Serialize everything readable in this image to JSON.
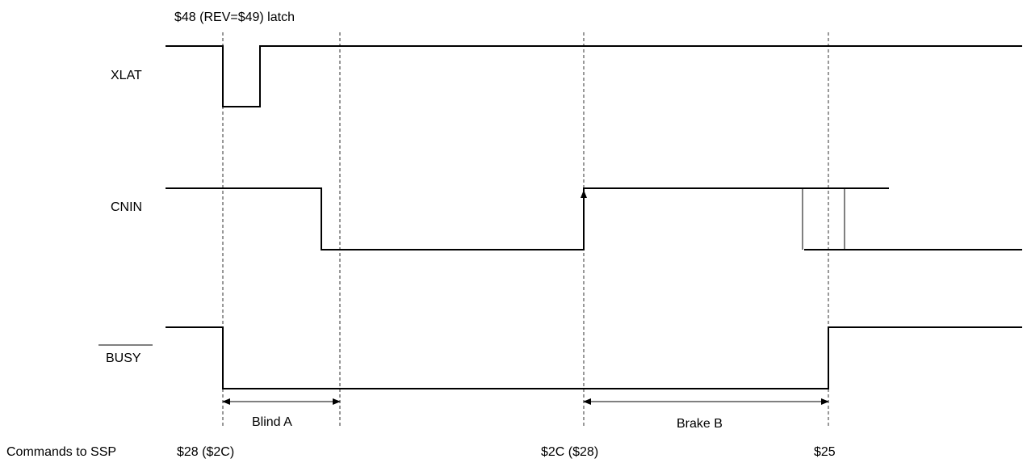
{
  "top_annotation": "$48 (REV=$49) latch",
  "signals": {
    "xlat": "XLAT",
    "cnin": "CNIN",
    "busy": "BUSY"
  },
  "intervals": {
    "blind": "Blind A",
    "brake": "Brake B"
  },
  "commands": {
    "label": "Commands to SSP",
    "first": "$28 ($2C)",
    "second": "$2C ($28)",
    "third": "$25"
  }
}
